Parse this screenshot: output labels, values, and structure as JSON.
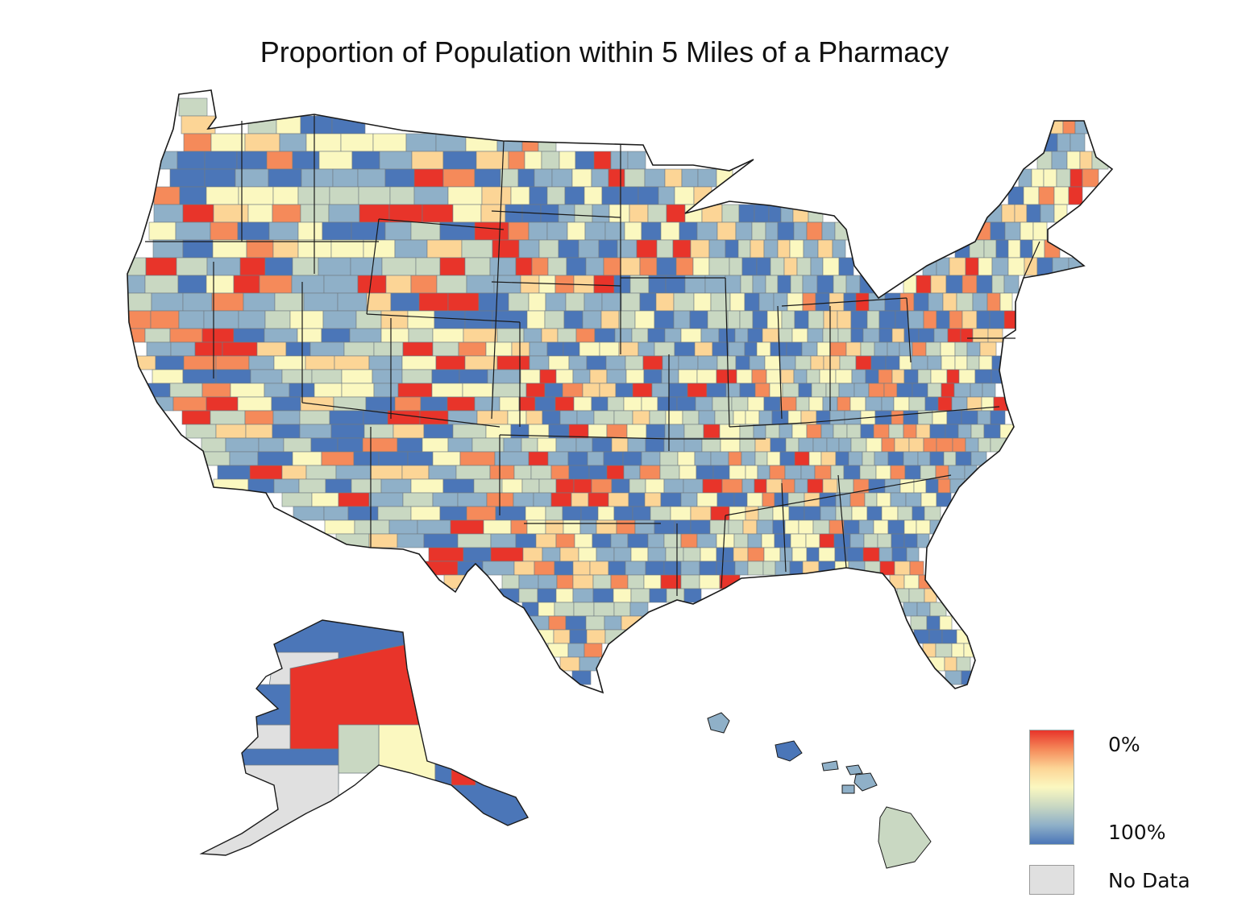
{
  "title": "Proportion of Population within 5 Miles of a Pharmacy",
  "legend": {
    "min_label": "0%",
    "max_label": "100%",
    "nodata_label": "No Data",
    "ramp_colors": [
      "#e8342a",
      "#f58a5a",
      "#fcd596",
      "#fbf8c0",
      "#c9d8c2",
      "#8fb0c8",
      "#4b76b8"
    ],
    "nodata_color": "#e0e0e0"
  },
  "map": {
    "regions": [
      "Contiguous United States",
      "Alaska",
      "Hawaii"
    ],
    "border_color": "#1a1a1a",
    "county_border_color": "#6f7a80"
  }
}
